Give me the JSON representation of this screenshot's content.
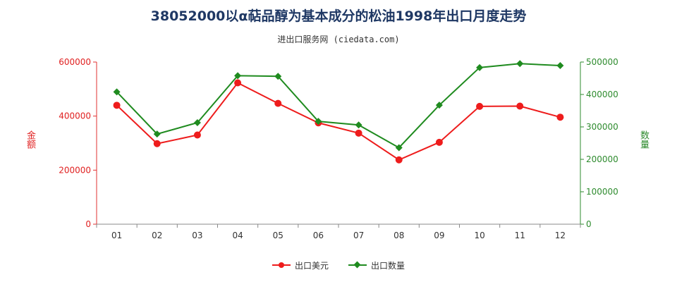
{
  "title": "38052000以α萜品醇为基本成分的松油1998年出口月度走势",
  "subtitle": "进出口服务网 (ciedata.com)",
  "chart_data": {
    "type": "line",
    "categories": [
      "01",
      "02",
      "03",
      "04",
      "05",
      "06",
      "07",
      "08",
      "09",
      "10",
      "11",
      "12"
    ],
    "series": [
      {
        "name": "出口美元",
        "axis": "left",
        "color": "#ee1c1c",
        "marker": "circle",
        "values": [
          440000,
          298000,
          330000,
          523000,
          447000,
          375000,
          337000,
          238000,
          303000,
          436000,
          437000,
          396000
        ]
      },
      {
        "name": "出口数量",
        "axis": "right",
        "color": "#1f8b1f",
        "marker": "diamond",
        "values": [
          408000,
          278000,
          313000,
          458000,
          456000,
          317000,
          306000,
          236000,
          367000,
          483000,
          495000,
          489000
        ]
      }
    ],
    "y_left": {
      "label": "金额",
      "range": [
        0,
        600000
      ],
      "ticks": [
        "0",
        "200000",
        "400000",
        "600000"
      ],
      "color": "#e02020"
    },
    "y_right": {
      "label": "数量",
      "range": [
        0,
        500000
      ],
      "ticks": [
        "0",
        "100000",
        "200000",
        "300000",
        "400000",
        "500000"
      ],
      "color": "#2e8b2e"
    },
    "grid": false,
    "legend_position": "bottom"
  }
}
